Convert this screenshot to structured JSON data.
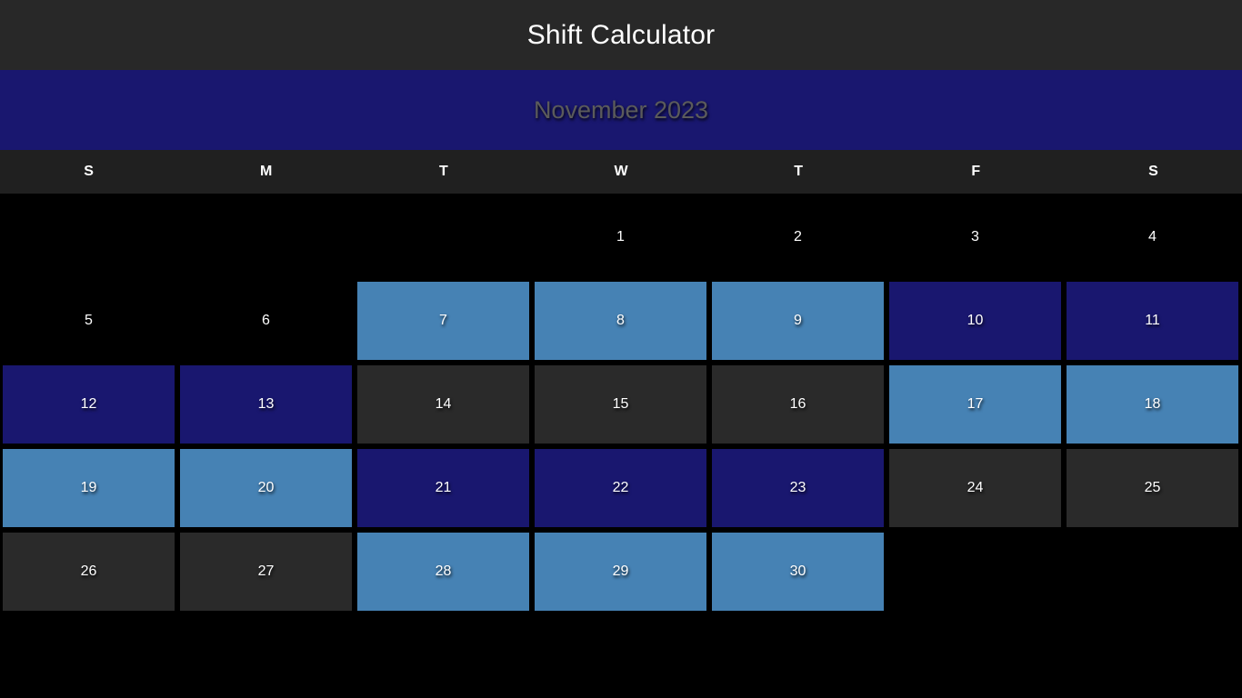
{
  "app": {
    "title": "Shift Calculator"
  },
  "calendar": {
    "month_label": "November 2023",
    "weekdays": [
      "S",
      "M",
      "T",
      "W",
      "T",
      "F",
      "S"
    ],
    "days": [
      {
        "label": "",
        "shift": "empty"
      },
      {
        "label": "",
        "shift": "empty"
      },
      {
        "label": "",
        "shift": "empty"
      },
      {
        "label": "1",
        "shift": "none"
      },
      {
        "label": "2",
        "shift": "none"
      },
      {
        "label": "3",
        "shift": "none"
      },
      {
        "label": "4",
        "shift": "none"
      },
      {
        "label": "5",
        "shift": "none"
      },
      {
        "label": "6",
        "shift": "none"
      },
      {
        "label": "7",
        "shift": "light"
      },
      {
        "label": "8",
        "shift": "light"
      },
      {
        "label": "9",
        "shift": "light"
      },
      {
        "label": "10",
        "shift": "navy"
      },
      {
        "label": "11",
        "shift": "navy"
      },
      {
        "label": "12",
        "shift": "navy"
      },
      {
        "label": "13",
        "shift": "navy"
      },
      {
        "label": "14",
        "shift": "gray"
      },
      {
        "label": "15",
        "shift": "gray"
      },
      {
        "label": "16",
        "shift": "gray"
      },
      {
        "label": "17",
        "shift": "light"
      },
      {
        "label": "18",
        "shift": "light"
      },
      {
        "label": "19",
        "shift": "light"
      },
      {
        "label": "20",
        "shift": "light"
      },
      {
        "label": "21",
        "shift": "navy"
      },
      {
        "label": "22",
        "shift": "navy"
      },
      {
        "label": "23",
        "shift": "navy"
      },
      {
        "label": "24",
        "shift": "gray"
      },
      {
        "label": "25",
        "shift": "gray"
      },
      {
        "label": "26",
        "shift": "gray"
      },
      {
        "label": "27",
        "shift": "gray"
      },
      {
        "label": "28",
        "shift": "light"
      },
      {
        "label": "29",
        "shift": "light"
      },
      {
        "label": "30",
        "shift": "light"
      }
    ]
  },
  "colors": {
    "header_bg": "#282828",
    "month_bar_bg": "#19176f",
    "weekday_bar_bg": "#202020",
    "shift_light": "#4682b4",
    "shift_navy": "#19176f",
    "shift_gray": "#2a2a2a",
    "page_bg": "#000000"
  }
}
